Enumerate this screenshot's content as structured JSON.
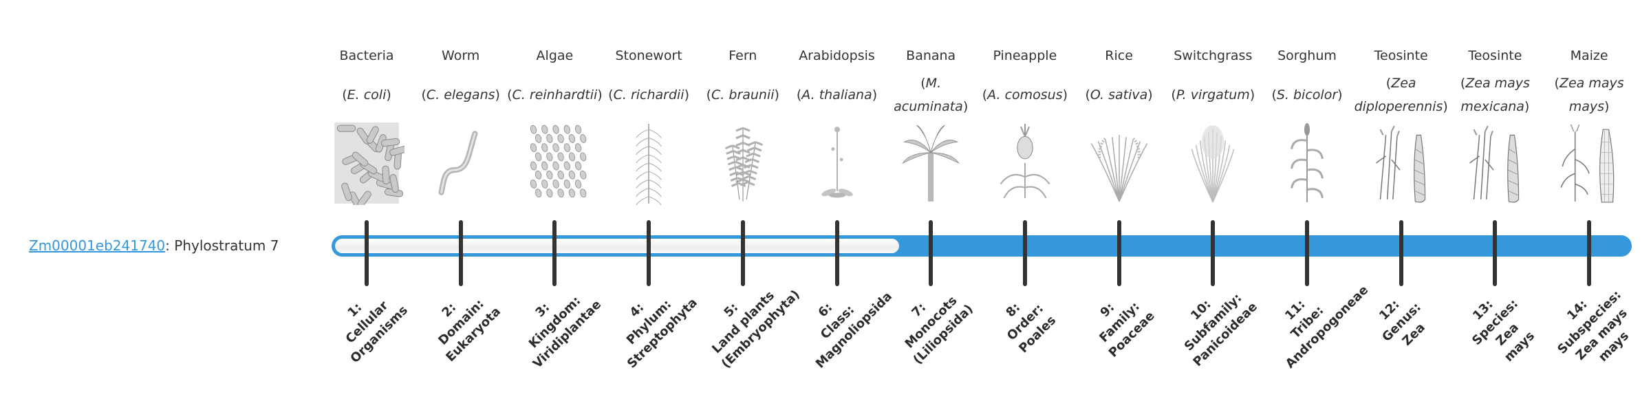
{
  "gene": {
    "id": "Zm00001eb241740",
    "separator": ":",
    "stratum_text": "Phylostratum 7",
    "phylostratum": 7
  },
  "colors": {
    "accent": "#3498db",
    "tick": "#333333",
    "empty": "#f5f5f5"
  },
  "organisms": [
    {
      "common": "Bacteria",
      "prefix": "(",
      "sci": "E. coli",
      "suffix": ")",
      "icon": "bacteria-illustration"
    },
    {
      "common": "Worm",
      "prefix": "(",
      "sci": "C. elegans",
      "suffix": ")",
      "icon": "worm-illustration"
    },
    {
      "common": "Algae",
      "prefix": "(",
      "sci": "C. reinhardtii",
      "suffix": ")",
      "icon": "algae-illustration"
    },
    {
      "common": "Stonewort",
      "prefix": "(",
      "sci": "C. richardii",
      "suffix": ")",
      "icon": "stonewort-illustration"
    },
    {
      "common": "Fern",
      "prefix": "(",
      "sci": "C. braunii",
      "suffix": ")",
      "icon": "fern-illustration"
    },
    {
      "common": "Arabidopsis",
      "prefix": "(",
      "sci": "A. thaliana",
      "suffix": ")",
      "icon": "arabidopsis-illustration"
    },
    {
      "common": "Banana",
      "prefix": "(",
      "sci": "M. acuminata",
      "suffix": ")",
      "icon": "banana-illustration"
    },
    {
      "common": "Pineapple",
      "prefix": "(",
      "sci": "A. comosus",
      "suffix": ")",
      "icon": "pineapple-illustration"
    },
    {
      "common": "Rice",
      "prefix": "(",
      "sci": "O. sativa",
      "suffix": ")",
      "icon": "rice-illustration"
    },
    {
      "common": "Switchgrass",
      "prefix": "(",
      "sci": "P. virgatum",
      "suffix": ")",
      "icon": "switchgrass-illustration"
    },
    {
      "common": "Sorghum",
      "prefix": "(",
      "sci": "S. bicolor",
      "suffix": ")",
      "icon": "sorghum-illustration"
    },
    {
      "common": "Teosinte",
      "prefix": "(",
      "sci": "Zea diploperennis",
      "suffix": ")",
      "icon": "teosinte-illustration"
    },
    {
      "common": "Teosinte",
      "prefix": "(",
      "sci": "Zea mays mexicana",
      "suffix": ")",
      "icon": "teosinte-illustration"
    },
    {
      "common": "Maize",
      "prefix": "(",
      "sci": "Zea mays mays",
      "suffix": ")",
      "icon": "maize-illustration"
    }
  ],
  "strata": [
    "1:\nCellular\nOrganisms",
    "2:\nDomain:\nEukaryota",
    "3:\nKingdom:\nViridiplantae",
    "4:\nPhylum:\nStreptophyta",
    "5:\nLand plants\n(Embryophyta)",
    "6:\nClass:\nMagnoliopsida",
    "7:\nMonocots\n(Liliopsida)",
    "8:\nOrder:\nPoales",
    "9:\nFamily:\nPoaceae",
    "10:\nSubfamily:\nPanicoideae",
    "11:\nTribe:\nAndropogoneae",
    "12:\nGenus:\nZea",
    "13:\nSpecies:\nZea\nmays",
    "14:\nSubspecies:\nZea mays\nmays"
  ]
}
